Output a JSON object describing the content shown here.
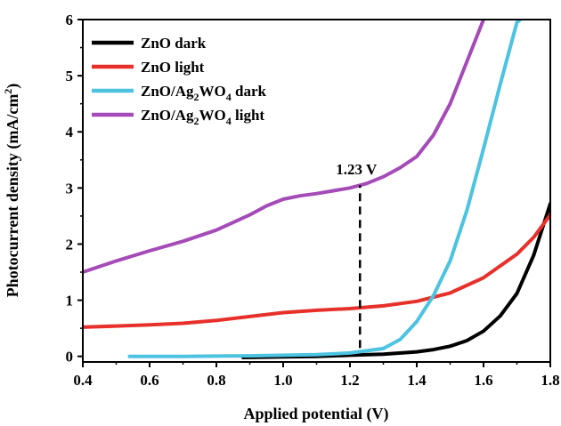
{
  "chart_data": {
    "type": "line",
    "xlabel": "Applied potential (V)",
    "ylabel": "Photocurrent density  (mA/cm",
    "ylabel_sup": "2",
    "ylabel_end": ")",
    "xlim": [
      0.4,
      1.8
    ],
    "ylim": [
      -0.1,
      6
    ],
    "x_ticks": [
      "0.4",
      "0.6",
      "0.8",
      "1.0",
      "1.2",
      "1.4",
      "1.6",
      "1.8"
    ],
    "y_ticks": [
      "0",
      "1",
      "2",
      "3",
      "4",
      "5",
      "6"
    ],
    "legend_position": "top-left",
    "grid": false,
    "annotation": {
      "text": "1.23 V",
      "x": 1.23,
      "line_from": 0.15,
      "line_to": 3.05
    },
    "series": [
      {
        "name": "ZnO dark",
        "color": "#000000",
        "x": [
          0.88,
          1.0,
          1.1,
          1.2,
          1.3,
          1.4,
          1.45,
          1.5,
          1.55,
          1.6,
          1.65,
          1.7,
          1.75,
          1.8
        ],
        "y": [
          -0.02,
          -0.01,
          0.0,
          0.02,
          0.04,
          0.08,
          0.12,
          0.18,
          0.28,
          0.45,
          0.72,
          1.12,
          1.8,
          2.72
        ]
      },
      {
        "name": "ZnO light",
        "color": "#e8302a",
        "x": [
          0.4,
          0.5,
          0.6,
          0.7,
          0.8,
          0.9,
          1.0,
          1.1,
          1.2,
          1.3,
          1.4,
          1.5,
          1.6,
          1.7,
          1.75,
          1.8
        ],
        "y": [
          0.52,
          0.54,
          0.56,
          0.59,
          0.64,
          0.71,
          0.78,
          0.82,
          0.85,
          0.9,
          0.98,
          1.13,
          1.4,
          1.82,
          2.12,
          2.52
        ]
      },
      {
        "name": "ZnO/Ag2WO4 dark",
        "label_main": "ZnO/Ag",
        "label_sub1": "2",
        "label_mid": "WO",
        "label_sub2": "4",
        "label_tail": " dark",
        "color": "#4cc3e0",
        "x": [
          0.54,
          0.7,
          0.9,
          1.1,
          1.2,
          1.3,
          1.35,
          1.4,
          1.45,
          1.5,
          1.55,
          1.6,
          1.65,
          1.7,
          1.71
        ],
        "y": [
          0.0,
          0.0,
          0.01,
          0.03,
          0.06,
          0.14,
          0.3,
          0.62,
          1.08,
          1.7,
          2.6,
          3.7,
          4.85,
          5.95,
          6.0
        ]
      },
      {
        "name": "ZnO/Ag2WO4 light",
        "label_main": "ZnO/Ag",
        "label_sub1": "2",
        "label_mid": "WO",
        "label_sub2": "4",
        "label_tail": " light",
        "color": "#a54bb8",
        "x": [
          0.4,
          0.5,
          0.6,
          0.7,
          0.8,
          0.9,
          0.95,
          1.0,
          1.05,
          1.1,
          1.15,
          1.2,
          1.25,
          1.3,
          1.35,
          1.4,
          1.45,
          1.5,
          1.55,
          1.6
        ],
        "y": [
          1.5,
          1.7,
          1.88,
          2.05,
          2.25,
          2.52,
          2.68,
          2.8,
          2.86,
          2.9,
          2.95,
          3.0,
          3.08,
          3.2,
          3.36,
          3.56,
          3.94,
          4.5,
          5.25,
          6.0
        ]
      }
    ]
  }
}
